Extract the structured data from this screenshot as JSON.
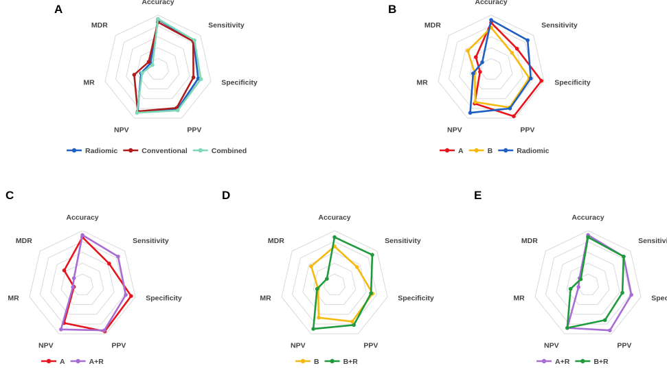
{
  "chart_data": [
    {
      "type": "radar",
      "panel": "A",
      "axes": [
        "Accuracy",
        "Sensitivity",
        "Specificity",
        "PPV",
        "NPV",
        "MR",
        "MDR"
      ],
      "range": [
        0,
        1
      ],
      "levels": 5,
      "series": [
        {
          "name": "Radiomic",
          "color": "#1f5fbf",
          "values": [
            0.92,
            0.84,
            0.76,
            0.82,
            0.86,
            0.32,
            0.18
          ]
        },
        {
          "name": "Conventional",
          "color": "#b01c1c",
          "values": [
            0.87,
            0.83,
            0.67,
            0.79,
            0.86,
            0.45,
            0.22
          ]
        },
        {
          "name": "Combined",
          "color": "#7fd8b8",
          "values": [
            0.93,
            0.86,
            0.81,
            0.84,
            0.89,
            0.3,
            0.13
          ]
        }
      ]
    },
    {
      "type": "radar",
      "panel": "B",
      "axes": [
        "Accuracy",
        "Sensitivity",
        "Specificity",
        "PPV",
        "NPV",
        "MR",
        "MDR"
      ],
      "range": [
        0,
        1
      ],
      "levels": 5,
      "series": [
        {
          "name": "A",
          "color": "#e8141c",
          "values": [
            0.86,
            0.61,
            0.95,
            0.96,
            0.7,
            0.21,
            0.36
          ]
        },
        {
          "name": "B",
          "color": "#f5b90f",
          "values": [
            0.77,
            0.49,
            0.72,
            0.78,
            0.67,
            0.31,
            0.55
          ]
        },
        {
          "name": "Radiomic",
          "color": "#1f5fbf",
          "values": [
            0.91,
            0.86,
            0.75,
            0.8,
            0.89,
            0.34,
            0.21
          ]
        }
      ]
    },
    {
      "type": "radar",
      "panel": "C",
      "axes": [
        "Accuracy",
        "Sensitivity",
        "Specificity",
        "PPV",
        "NPV",
        "MR",
        "MDR"
      ],
      "range": [
        0,
        1
      ],
      "levels": 5,
      "series": [
        {
          "name": "A",
          "color": "#e8141c",
          "values": [
            0.88,
            0.63,
            0.92,
            0.95,
            0.78,
            0.16,
            0.43
          ]
        },
        {
          "name": "A+R",
          "color": "#a86cd6",
          "values": [
            0.92,
            0.84,
            0.82,
            0.93,
            0.91,
            0.18,
            0.2
          ]
        }
      ]
    },
    {
      "type": "radar",
      "panel": "D",
      "axes": [
        "Accuracy",
        "Sensitivity",
        "Specificity",
        "PPV",
        "NPV",
        "MR",
        "MDR"
      ],
      "range": [
        0,
        1
      ],
      "levels": 5,
      "series": [
        {
          "name": "B",
          "color": "#f5b90f",
          "values": [
            0.71,
            0.53,
            0.72,
            0.75,
            0.67,
            0.31,
            0.55
          ]
        },
        {
          "name": "B+R",
          "color": "#1f9a3c",
          "values": [
            0.88,
            0.89,
            0.69,
            0.82,
            0.9,
            0.33,
            0.18
          ]
        }
      ]
    },
    {
      "type": "radar",
      "panel": "E",
      "axes": [
        "Accuracy",
        "Sensitivity",
        "Specificity",
        "PPV",
        "NPV",
        "MR",
        "MDR"
      ],
      "range": [
        0,
        1
      ],
      "levels": 5,
      "series": [
        {
          "name": "A+R",
          "color": "#a86cd6",
          "values": [
            0.92,
            0.84,
            0.82,
            0.93,
            0.88,
            0.18,
            0.2
          ]
        },
        {
          "name": "B+R",
          "color": "#1f9a3c",
          "values": [
            0.88,
            0.84,
            0.65,
            0.72,
            0.88,
            0.33,
            0.17
          ]
        }
      ]
    }
  ]
}
